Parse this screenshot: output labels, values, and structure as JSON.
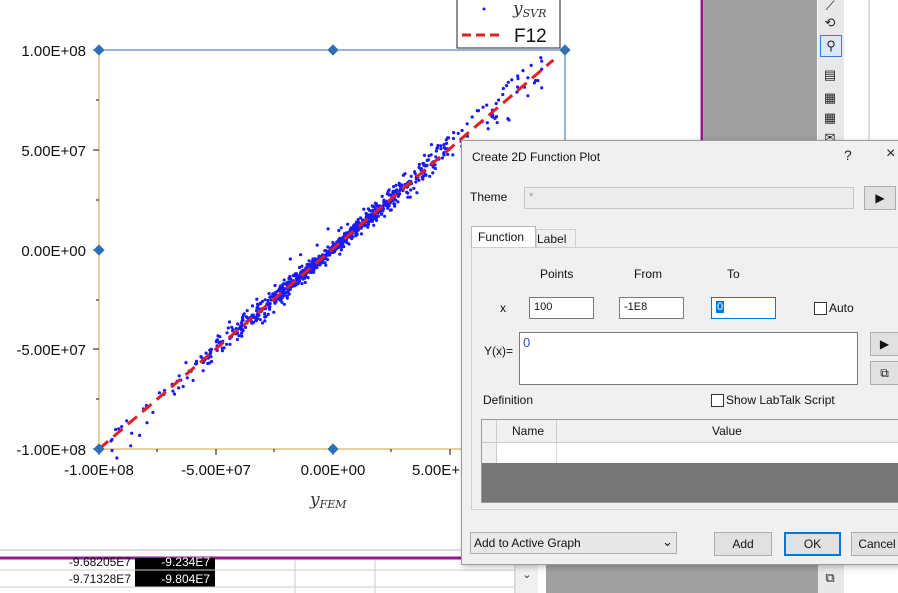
{
  "chart_data": {
    "type": "scatter",
    "x_label": "y_FEM",
    "y_label": "",
    "x_ticks": [
      "-1.00E+08",
      "-5.00E+07",
      "0.00E+00",
      "5.00E+"
    ],
    "y_ticks": [
      "1.00E+08",
      "5.00E+07",
      "0.00E+00",
      "-5.00E+07",
      "-1.00E+08"
    ],
    "xlim": [
      -100000000,
      100000000
    ],
    "ylim": [
      -100000000,
      100000000
    ],
    "series": [
      {
        "name": "y_SVR",
        "style": "points",
        "color": "#1a1aff"
      },
      {
        "name": "F12",
        "style": "dashed-line",
        "color": "#e02020",
        "points": [
          [
            -100000000,
            -100000000
          ],
          [
            95000000,
            95000000
          ]
        ]
      }
    ],
    "legend_placement": "top-right"
  },
  "legend": {
    "series1_label_main": "y",
    "series1_label_sub": "SVR",
    "series2_label": "F12"
  },
  "axis": {
    "x_label_main": "y",
    "x_label_sub": "FEM"
  },
  "worksheet": {
    "row1": [
      "-9.68205E7",
      "-9.234E7"
    ],
    "row2": [
      "-9.71328E7",
      "-9.804E7"
    ]
  },
  "dialog": {
    "title": "Create 2D Function Plot",
    "help_icon": "?",
    "close_icon": "×",
    "theme_label": "Theme",
    "theme_value": "*",
    "tab_function": "Function",
    "tab_label": "Label",
    "col_points": "Points",
    "col_from": "From",
    "col_to": "To",
    "x_label": "x",
    "points_value": "100",
    "from_value": "-1E8",
    "to_value": "0",
    "auto_label": "Auto",
    "yx_label": "Y(x)=",
    "yx_value": "0",
    "definition_label": "Definition",
    "show_labtalk_label": "Show LabTalk Script",
    "table_col_name": "Name",
    "table_col_value": "Value",
    "add_to_label": "Add to Active Graph",
    "add_button": "Add",
    "ok_button": "OK",
    "cancel_button": "Cancel"
  }
}
